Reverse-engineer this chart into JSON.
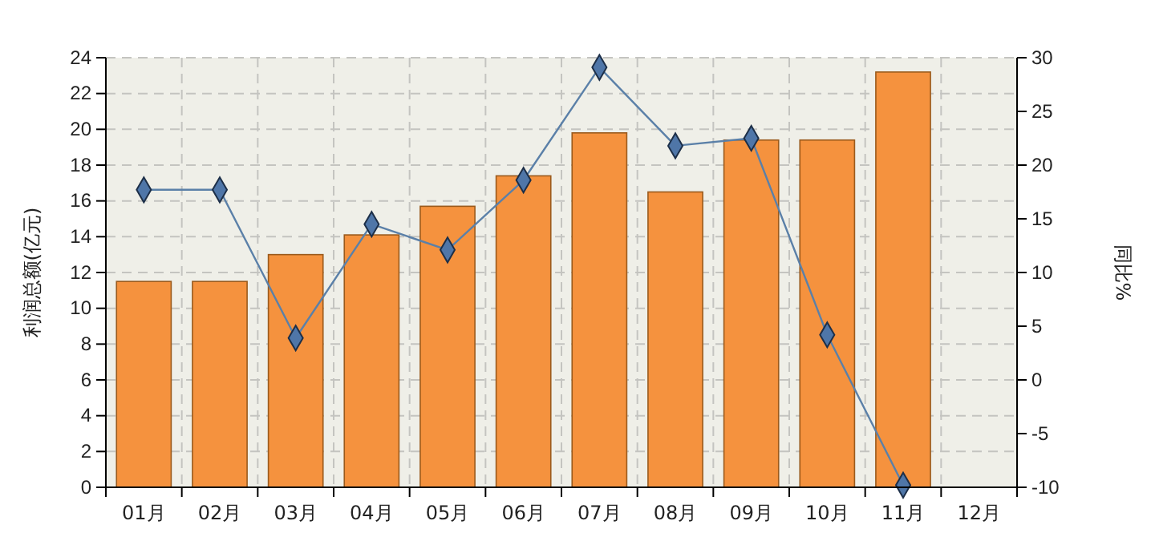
{
  "chart_data": {
    "type": "bar",
    "ylabel": "利润总额(亿元)",
    "y2label": "同比%",
    "categories": [
      "01月",
      "02月",
      "03月",
      "04月",
      "05月",
      "06月",
      "07月",
      "08月",
      "09月",
      "10月",
      "11月",
      "12月"
    ],
    "series": [
      {
        "color": "#f5923e",
        "values": [
          11.5,
          11.5,
          13.0,
          14.1,
          15.7,
          17.4,
          19.8,
          16.5,
          19.4,
          19.4,
          23.2,
          null
        ]
      },
      {
        "type": "line",
        "axis": "y2",
        "color": "#5b80a8",
        "marker": "diamond",
        "line_style": "solid",
        "values": [
          17.7,
          17.7,
          3.9,
          14.5,
          12.1,
          18.6,
          29.1,
          21.8,
          22.5,
          4.2,
          -9.8,
          null
        ]
      }
    ],
    "ylim": [
      0,
      24
    ],
    "yticks": [
      0,
      2,
      4,
      6,
      8,
      10,
      12,
      14,
      16,
      18,
      20,
      22,
      24
    ],
    "y2lim": [
      -10,
      30
    ],
    "y2ticks": [
      -10,
      -5,
      0,
      5,
      10,
      15,
      20,
      25,
      30
    ],
    "grid": true
  }
}
